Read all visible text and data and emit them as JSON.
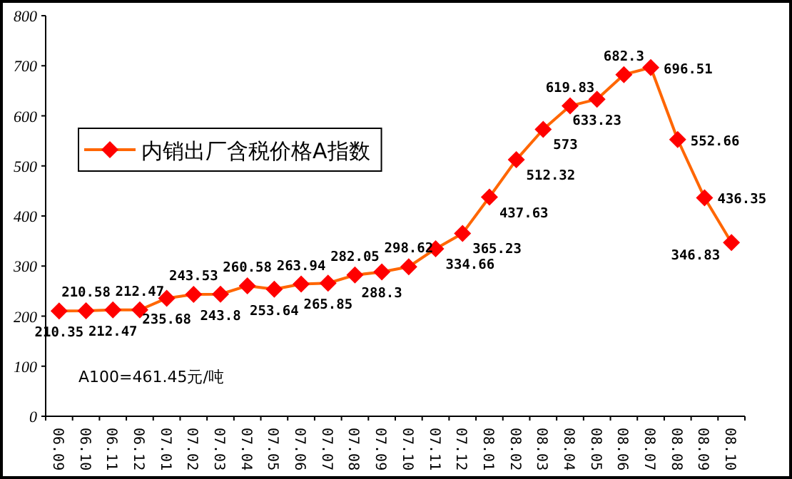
{
  "chart_data": {
    "type": "line",
    "categories": [
      "06.09",
      "06.10",
      "06.11",
      "06.12",
      "07.01",
      "07.02",
      "07.03",
      "07.04",
      "07.05",
      "07.06",
      "07.07",
      "07.08",
      "07.09",
      "07.10",
      "07.11",
      "07.12",
      "08.01",
      "08.02",
      "08.03",
      "08.04",
      "08.05",
      "08.06",
      "08.07",
      "08.08",
      "08.09",
      "08.10"
    ],
    "series": [
      {
        "name": "内销出厂含税价格A指数",
        "color": "#ff6600",
        "values": [
          210.35,
          210.58,
          212.47,
          212.47,
          235.68,
          243.53,
          243.8,
          260.58,
          253.64,
          263.94,
          265.85,
          282.05,
          288.3,
          298.62,
          334.66,
          365.23,
          437.63,
          512.32,
          573,
          619.83,
          633.23,
          682.3,
          696.51,
          552.66,
          436.35,
          346.83
        ]
      }
    ],
    "ylim": [
      0,
      800
    ],
    "yticks": [
      0,
      100,
      200,
      300,
      400,
      500,
      600,
      700,
      800
    ],
    "marker": "diamond",
    "data_labels": true,
    "legend": "top left",
    "grid": false,
    "annotations": [
      "A100=461.45元/吨"
    ]
  }
}
